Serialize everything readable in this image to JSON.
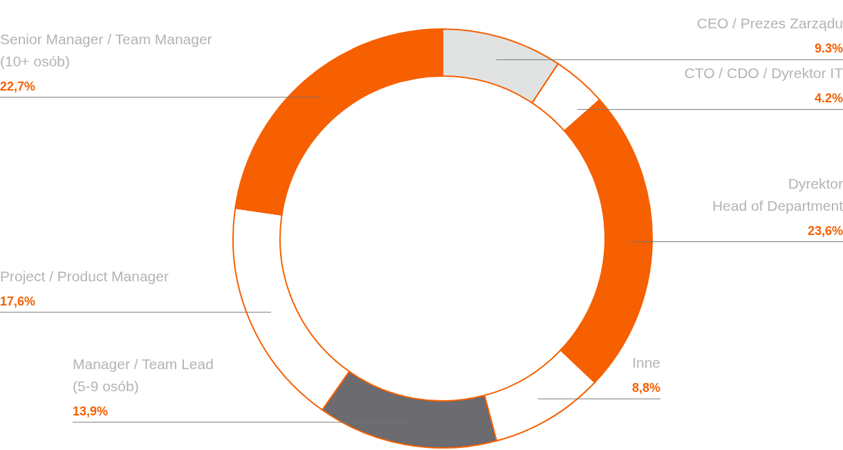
{
  "chart_data": {
    "type": "donut",
    "categories": [
      "CEO / Prezes Zarządu",
      "CTO / CDO / Dyrektor IT",
      "Dyrektor\nHead of Department",
      "Inne",
      "Manager / Team Lead\n(5-9 osób)",
      "Project / Product Manager",
      "Senior Manager / Team Manager\n(10+ osób)"
    ],
    "values": [
      9.3,
      4.2,
      23.6,
      8.8,
      13.9,
      17.6,
      22.7
    ],
    "colors": [
      "#e1e3e3",
      "#ffffff",
      "#f66000",
      "#ffffff",
      "#6b6b70",
      "#ffffff",
      "#f66000"
    ],
    "value_labels": [
      "9.3%",
      "4.2%",
      "23,6%",
      "8,8%",
      "13,9%",
      "17,6%",
      "22,7%"
    ]
  }
}
